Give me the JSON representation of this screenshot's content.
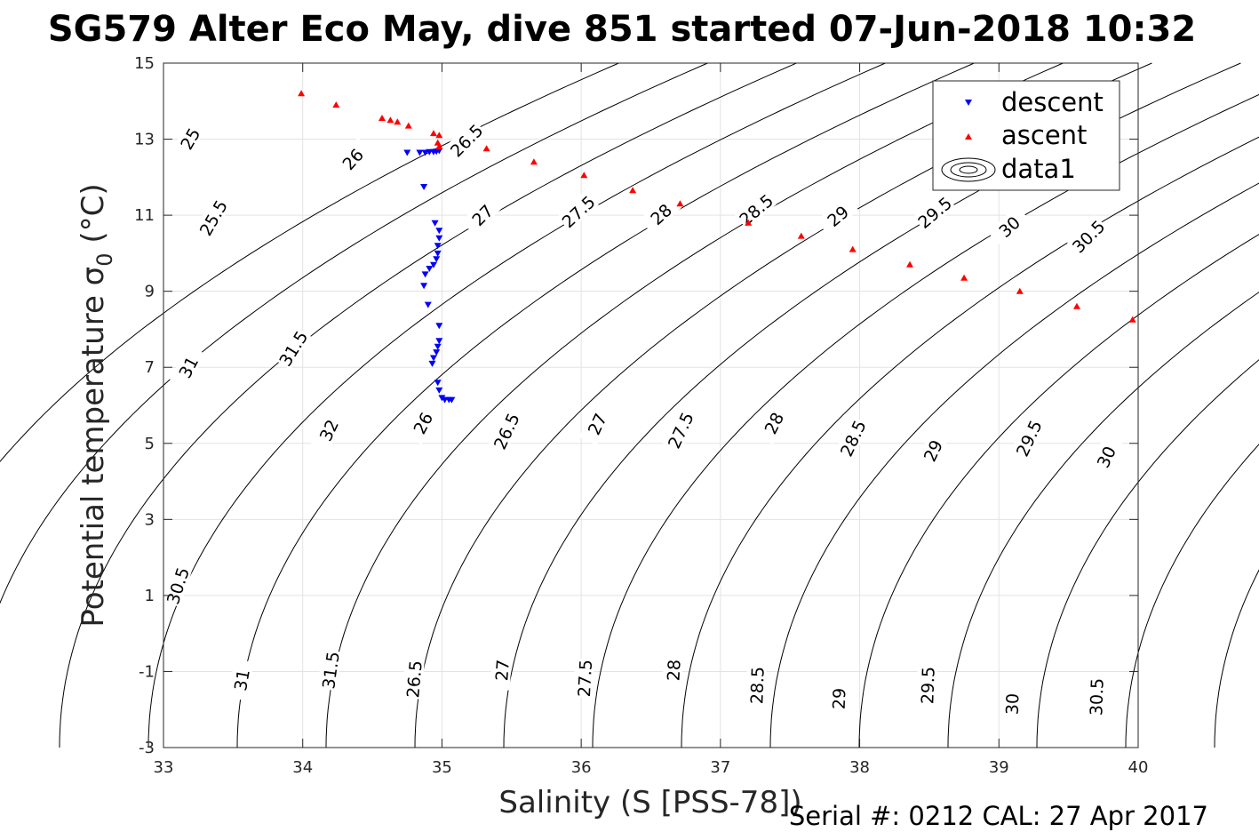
{
  "chart_data": {
    "type": "scatter",
    "title": "SG579 Alter Eco May, dive 851 started 07-Jun-2018 10:32",
    "xlabel": "Salinity (S [PSS-78])",
    "ylabel": "Potential temperature σ",
    "ylabel_subscript": "0",
    "ylabel_unit": " (°C)",
    "footer": "Serial #: 0212  CAL: 27 Apr 2017",
    "xlim": [
      33,
      40
    ],
    "ylim": [
      -3,
      15
    ],
    "x_ticks": [
      33,
      34,
      35,
      36,
      37,
      38,
      39,
      40
    ],
    "x_tick_labels": [
      "33",
      "34",
      "35",
      "36",
      "37",
      "38",
      "39",
      "40"
    ],
    "y_ticks": [
      -3,
      -1,
      1,
      3,
      5,
      7,
      9,
      11,
      13,
      15
    ],
    "y_tick_labels": [
      "-3",
      "-1",
      "1",
      "3",
      "5",
      "7",
      "9",
      "11",
      "13",
      "15"
    ],
    "grid": true,
    "legend_position": "top-right",
    "legend": [
      {
        "label": "descent",
        "marker": "triangle-down",
        "color": "#0000ff"
      },
      {
        "label": "ascent",
        "marker": "triangle-up",
        "color": "#ff0000"
      },
      {
        "label": "data1",
        "marker": "contour"
      }
    ],
    "series": [
      {
        "name": "descent",
        "color": "#0000ff",
        "marker": "triangle-down",
        "points": [
          [
            34.75,
            12.65
          ],
          [
            34.84,
            12.65
          ],
          [
            34.88,
            12.65
          ],
          [
            34.91,
            12.67
          ],
          [
            34.94,
            12.67
          ],
          [
            34.96,
            12.68
          ],
          [
            34.98,
            12.7
          ],
          [
            34.87,
            11.75
          ],
          [
            34.95,
            10.8
          ],
          [
            34.98,
            10.6
          ],
          [
            34.98,
            10.4
          ],
          [
            34.97,
            10.2
          ],
          [
            34.97,
            10.0
          ],
          [
            34.96,
            9.85
          ],
          [
            34.94,
            9.7
          ],
          [
            34.91,
            9.6
          ],
          [
            34.88,
            9.45
          ],
          [
            34.87,
            9.15
          ],
          [
            34.9,
            8.65
          ],
          [
            34.98,
            8.1
          ],
          [
            34.98,
            7.7
          ],
          [
            34.97,
            7.55
          ],
          [
            34.96,
            7.4
          ],
          [
            34.94,
            7.25
          ],
          [
            34.93,
            7.1
          ],
          [
            34.97,
            6.6
          ],
          [
            34.98,
            6.4
          ],
          [
            35.0,
            6.2
          ],
          [
            35.02,
            6.15
          ],
          [
            35.05,
            6.15
          ],
          [
            35.07,
            6.15
          ]
        ]
      },
      {
        "name": "ascent",
        "color": "#ff0000",
        "marker": "triangle-up",
        "points": [
          [
            33.99,
            14.2
          ],
          [
            34.24,
            13.9
          ],
          [
            34.57,
            13.55
          ],
          [
            34.63,
            13.5
          ],
          [
            34.68,
            13.45
          ],
          [
            34.76,
            13.35
          ],
          [
            34.94,
            13.15
          ],
          [
            34.98,
            13.1
          ],
          [
            34.97,
            12.9
          ],
          [
            34.98,
            12.8
          ],
          [
            35.32,
            12.75
          ],
          [
            35.66,
            12.4
          ],
          [
            36.02,
            12.05
          ],
          [
            36.37,
            11.65
          ],
          [
            36.71,
            11.3
          ],
          [
            37.2,
            10.8
          ],
          [
            37.58,
            10.45
          ],
          [
            37.95,
            10.1
          ],
          [
            38.36,
            9.7
          ],
          [
            38.75,
            9.35
          ],
          [
            39.15,
            9.0
          ],
          [
            39.56,
            8.6
          ],
          [
            39.96,
            8.25
          ]
        ]
      }
    ],
    "density_contours": {
      "levels": [
        "25",
        "25.5",
        "26",
        "26.5",
        "27",
        "27.5",
        "28",
        "28.5",
        "29",
        "29.5",
        "30",
        "30.5",
        "31",
        "31.5",
        "32"
      ],
      "label_text": [
        "25",
        "25.5",
        "26",
        "26.5",
        "27",
        "27.5",
        "28",
        "28.5",
        "29",
        "29.5",
        "30",
        "30.5",
        "31",
        "31.5",
        "32",
        "26",
        "26.5",
        "27",
        "27.5",
        "28",
        "28.5",
        "29",
        "29.5",
        "30",
        "30.5",
        "31",
        "31.5",
        "26.5",
        "27",
        "27.5",
        "28",
        "28.5",
        "29",
        "29.5",
        "30",
        "30.5",
        "31",
        "31.5",
        "32",
        "26",
        "26.5",
        "27",
        "27.5",
        "28",
        "28.5",
        "29",
        "29.5",
        "30",
        "30.5"
      ]
    }
  }
}
